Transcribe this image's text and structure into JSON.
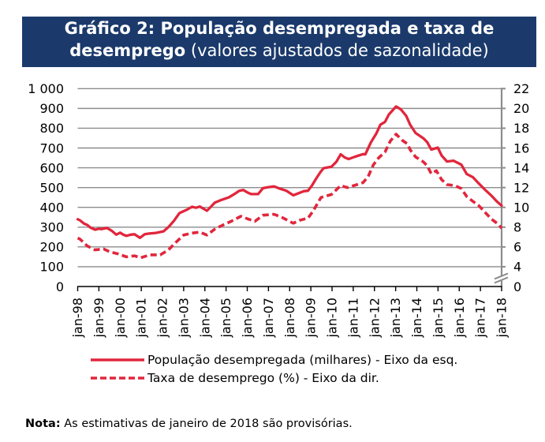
{
  "chart_data": {
    "type": "line",
    "title": "Gráfico 2: População desempregada e taxa de desemprego (valores ajustados de sazonalidade)",
    "title_parts": {
      "line1": "Gráfico 2: População desempregada e taxa de",
      "line2_bold": "desemprego",
      "line2_regular": " (valores ajustados de sazonalidade)"
    },
    "xlabel": "",
    "x_range": [
      1998,
      2018
    ],
    "x_ticks": [
      1998,
      1999,
      2000,
      2001,
      2002,
      2003,
      2004,
      2005,
      2006,
      2007,
      2008,
      2009,
      2010,
      2011,
      2012,
      2013,
      2014,
      2015,
      2016,
      2017,
      2018
    ],
    "x_tick_labels": [
      "jan-98",
      "jan-99",
      "jan-00",
      "jan-01",
      "jan-02",
      "jan-03",
      "jan-04",
      "jan-05",
      "jan-06",
      "jan-07",
      "jan-08",
      "jan-09",
      "jan-10",
      "jan-11",
      "jan-12",
      "jan-13",
      "jan-14",
      "jan-15",
      "jan-16",
      "jan-17",
      "jan-18"
    ],
    "y_left": {
      "label": "",
      "unit": "milhares",
      "range": [
        0,
        1000
      ],
      "ticks": [
        0,
        100,
        200,
        300,
        400,
        500,
        600,
        700,
        800,
        900,
        1000
      ],
      "tick_labels": [
        "0",
        "100",
        "200",
        "300",
        "400",
        "500",
        "600",
        "700",
        "800",
        "900",
        "1 000"
      ]
    },
    "y_right": {
      "label": "",
      "unit": "%",
      "range": [
        0,
        22
      ],
      "axis_break_between": [
        0,
        4
      ],
      "ticks": [
        0,
        4,
        6,
        8,
        10,
        12,
        14,
        16,
        18,
        20,
        22
      ],
      "tick_labels": [
        "0",
        "4",
        "6",
        "8",
        "10",
        "12",
        "14",
        "16",
        "18",
        "20",
        "22"
      ]
    },
    "grid": true,
    "legend_position": "bottom",
    "colors": {
      "title_background": "#1b3a6b",
      "series": "#e1263c",
      "grid": "#8c8c8c",
      "axis": "#000000"
    },
    "series": [
      {
        "name": "População desempregada (milhares) - Eixo da esq.",
        "axis": "left",
        "style": "solid",
        "color": "#e1263c",
        "points": [
          [
            1998.0,
            340
          ],
          [
            1998.1,
            335
          ],
          [
            1998.3,
            318
          ],
          [
            1998.45,
            311
          ],
          [
            1998.6,
            298
          ],
          [
            1998.82,
            287
          ],
          [
            1999.0,
            292
          ],
          [
            1999.12,
            290
          ],
          [
            1999.38,
            296
          ],
          [
            1999.6,
            282
          ],
          [
            1999.82,
            262
          ],
          [
            2000.0,
            272
          ],
          [
            2000.15,
            262
          ],
          [
            2000.3,
            256
          ],
          [
            2000.5,
            262
          ],
          [
            2000.68,
            264
          ],
          [
            2000.94,
            246
          ],
          [
            2001.16,
            264
          ],
          [
            2001.4,
            268
          ],
          [
            2001.68,
            271
          ],
          [
            2002.05,
            279
          ],
          [
            2002.28,
            300
          ],
          [
            2002.54,
            332
          ],
          [
            2002.8,
            371
          ],
          [
            2003.0,
            381
          ],
          [
            2003.17,
            389
          ],
          [
            2003.39,
            403
          ],
          [
            2003.58,
            398
          ],
          [
            2003.76,
            404
          ],
          [
            2004.1,
            383
          ],
          [
            2004.3,
            405
          ],
          [
            2004.47,
            424
          ],
          [
            2004.77,
            437
          ],
          [
            2005.14,
            451
          ],
          [
            2005.4,
            468
          ],
          [
            2005.62,
            484
          ],
          [
            2005.81,
            488
          ],
          [
            2006.0,
            476
          ],
          [
            2006.18,
            467
          ],
          [
            2006.51,
            467
          ],
          [
            2006.74,
            497
          ],
          [
            2007.0,
            502
          ],
          [
            2007.26,
            506
          ],
          [
            2007.55,
            494
          ],
          [
            2007.85,
            484
          ],
          [
            2008.17,
            461
          ],
          [
            2008.48,
            474
          ],
          [
            2008.67,
            482
          ],
          [
            2008.86,
            484
          ],
          [
            2009.05,
            510
          ],
          [
            2009.23,
            542
          ],
          [
            2009.45,
            578
          ],
          [
            2009.6,
            598
          ],
          [
            2009.97,
            605
          ],
          [
            2010.2,
            630
          ],
          [
            2010.41,
            668
          ],
          [
            2010.6,
            652
          ],
          [
            2010.78,
            644
          ],
          [
            2011.09,
            656
          ],
          [
            2011.46,
            669
          ],
          [
            2011.57,
            668
          ],
          [
            2011.83,
            728
          ],
          [
            2012.09,
            774
          ],
          [
            2012.28,
            818
          ],
          [
            2012.5,
            832
          ],
          [
            2012.68,
            869
          ],
          [
            2013.02,
            910
          ],
          [
            2013.24,
            896
          ],
          [
            2013.5,
            862
          ],
          [
            2013.69,
            816
          ],
          [
            2013.94,
            776
          ],
          [
            2014.31,
            749
          ],
          [
            2014.49,
            729
          ],
          [
            2014.68,
            692
          ],
          [
            2014.99,
            702
          ],
          [
            2015.17,
            662
          ],
          [
            2015.42,
            632
          ],
          [
            2015.73,
            636
          ],
          [
            2016.1,
            616
          ],
          [
            2016.35,
            569
          ],
          [
            2016.65,
            552
          ],
          [
            2016.91,
            522
          ],
          [
            2017.22,
            489
          ],
          [
            2017.53,
            458
          ],
          [
            2017.78,
            429
          ],
          [
            2018.0,
            409
          ]
        ]
      },
      {
        "name": "Taxa de desemprego (%) - Eixo da dir.",
        "axis": "right",
        "style": "dashed",
        "color": "#e1263c",
        "points": [
          [
            1998.0,
            6.9
          ],
          [
            1998.1,
            6.8
          ],
          [
            1998.45,
            6.1
          ],
          [
            1998.82,
            5.7
          ],
          [
            1999.22,
            5.8
          ],
          [
            1999.52,
            5.5
          ],
          [
            1999.9,
            5.3
          ],
          [
            2000.3,
            5.0
          ],
          [
            2000.68,
            5.1
          ],
          [
            2000.97,
            4.9
          ],
          [
            2001.41,
            5.2
          ],
          [
            2001.9,
            5.2
          ],
          [
            2002.28,
            5.7
          ],
          [
            2002.65,
            6.5
          ],
          [
            2003.0,
            7.2
          ],
          [
            2003.39,
            7.4
          ],
          [
            2003.76,
            7.5
          ],
          [
            2004.1,
            7.2
          ],
          [
            2004.47,
            7.8
          ],
          [
            2004.84,
            8.2
          ],
          [
            2005.25,
            8.6
          ],
          [
            2005.7,
            9.1
          ],
          [
            2006.07,
            8.8
          ],
          [
            2006.36,
            8.6
          ],
          [
            2006.74,
            9.2
          ],
          [
            2007.26,
            9.3
          ],
          [
            2007.63,
            9.0
          ],
          [
            2008.17,
            8.4
          ],
          [
            2008.48,
            8.7
          ],
          [
            2008.86,
            8.9
          ],
          [
            2009.1,
            9.6
          ],
          [
            2009.48,
            11.0
          ],
          [
            2009.97,
            11.3
          ],
          [
            2010.41,
            12.2
          ],
          [
            2010.72,
            12.0
          ],
          [
            2011.03,
            12.2
          ],
          [
            2011.46,
            12.5
          ],
          [
            2011.7,
            13.1
          ],
          [
            2011.95,
            14.3
          ],
          [
            2012.2,
            15.0
          ],
          [
            2012.5,
            15.6
          ],
          [
            2012.75,
            16.7
          ],
          [
            2013.02,
            17.4
          ],
          [
            2013.3,
            16.8
          ],
          [
            2013.56,
            16.4
          ],
          [
            2013.69,
            15.8
          ],
          [
            2013.94,
            15.1
          ],
          [
            2014.31,
            14.6
          ],
          [
            2014.49,
            14.2
          ],
          [
            2014.68,
            13.4
          ],
          [
            2014.92,
            13.7
          ],
          [
            2015.17,
            12.8
          ],
          [
            2015.42,
            12.3
          ],
          [
            2015.79,
            12.2
          ],
          [
            2016.1,
            11.9
          ],
          [
            2016.35,
            11.1
          ],
          [
            2016.65,
            10.6
          ],
          [
            2016.91,
            10.2
          ],
          [
            2017.22,
            9.5
          ],
          [
            2017.53,
            8.8
          ],
          [
            2017.78,
            8.4
          ],
          [
            2018.0,
            7.9
          ]
        ]
      }
    ]
  },
  "note": {
    "label": "Nota:",
    "text": " As estimativas de janeiro de 2018 são provisórias."
  }
}
